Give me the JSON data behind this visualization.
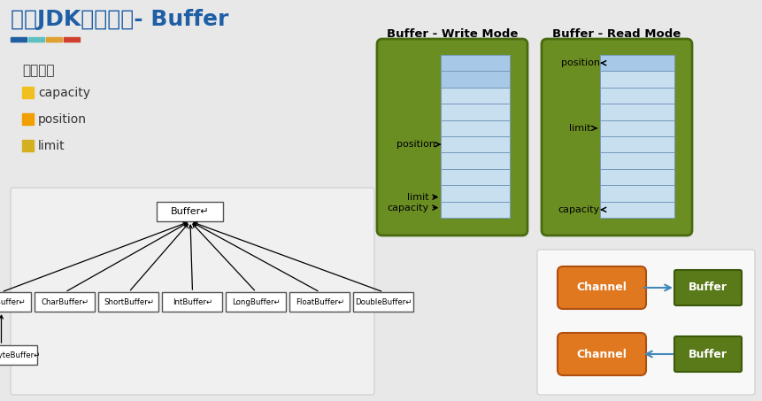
{
  "title": "原生JDK网络编程- Buffer",
  "bg_color": "#e8e8e8",
  "title_color": "#1f5fa6",
  "title_fontsize": 18,
  "header_bar_colors": [
    "#2060a0",
    "#60c0c0",
    "#e0a030",
    "#d04030"
  ],
  "section_label": "重要属性",
  "properties": [
    "capacity",
    "position",
    "limit"
  ],
  "prop_square_color": "#f0c020",
  "write_mode_title": "Buffer - Write Mode",
  "read_mode_title": "Buffer - Read Mode",
  "green_bg": "#6b8e23",
  "green_border": "#4a6a10",
  "cell_color_blue_light": "#c8dff0",
  "cell_color_blue": "#a8c8e8",
  "cell_border": "#7799bb",
  "buffer_classes": [
    "ByteBuffer↵",
    "CharBuffer↵",
    "ShortBuffer↵",
    "IntBuffer↵",
    "LongBuffer↵",
    "FloatBuffer↵",
    "DoubleBuffer↵"
  ],
  "parent_class": "Buffer↵",
  "child_class": "MappedByteBuffer↵",
  "channel_color": "#e07820",
  "channel_border": "#b05010",
  "buffer_box_color": "#5a7a1a",
  "buffer_box_border": "#3a5a0a",
  "arrow_color": "#4488bb",
  "diagram_box_bg": "#f0f0f0",
  "diagram_box_border": "#cccccc",
  "cb_box_bg": "#f8f8f8",
  "cb_box_border": "#cccccc"
}
